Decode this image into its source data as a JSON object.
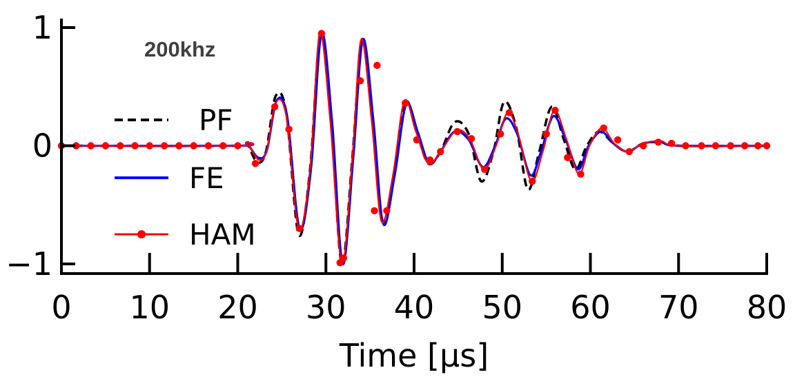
{
  "chart_data": {
    "type": "line",
    "annotation": "200khz",
    "xlabel": "Time [μs]",
    "ylabel": "",
    "xlim": [
      0,
      80
    ],
    "ylim": [
      -1.05,
      1.05
    ],
    "xticks": [
      0,
      10,
      20,
      30,
      40,
      50,
      60,
      70,
      80
    ],
    "xtick_labels": [
      "0",
      "10",
      "20",
      "30",
      "40",
      "50",
      "60",
      "70",
      "80"
    ],
    "yticks": [
      -1,
      0,
      1
    ],
    "ytick_labels": [
      "−1",
      "0",
      "1"
    ],
    "grid": false,
    "legend_position": "left",
    "series": [
      {
        "name": "PF",
        "color": "#000000",
        "style": "dashed",
        "x": [
          0,
          20,
          21,
          22.2,
          23.2,
          24.3,
          25.5,
          26.9,
          28.2,
          29.4,
          30.6,
          31.8,
          33.0,
          34.1,
          35.3,
          36.4,
          37.7,
          39.0,
          40.3,
          41.6,
          43.0,
          44.6,
          46.2,
          47.6,
          49.0,
          50.2,
          51.6,
          52.9,
          54.2,
          55.6,
          57.0,
          58.3,
          59.6,
          61.0,
          62.6,
          64.2,
          66.0,
          68.0,
          70.0,
          80
        ],
        "y": [
          0,
          0,
          0.02,
          -0.14,
          -0.05,
          0.42,
          0.28,
          -0.75,
          -0.2,
          0.97,
          0.2,
          -1.0,
          -0.1,
          0.9,
          0.2,
          -0.64,
          -0.25,
          0.37,
          0.12,
          -0.15,
          -0.05,
          0.2,
          0.1,
          -0.3,
          -0.05,
          0.37,
          0.15,
          -0.37,
          -0.05,
          0.33,
          0.05,
          -0.2,
          0.0,
          0.12,
          0.02,
          -0.05,
          0.02,
          0.03,
          0.0,
          0
        ]
      },
      {
        "name": "FE",
        "color": "#0000ff",
        "style": "solid",
        "x": [
          0,
          20,
          21,
          22.3,
          23.3,
          24.4,
          25.6,
          27.0,
          28.3,
          29.5,
          30.7,
          31.9,
          33.1,
          34.2,
          35.4,
          36.5,
          37.8,
          39.1,
          40.4,
          41.7,
          43.0,
          44.6,
          46.2,
          47.8,
          49.2,
          50.4,
          51.7,
          53.2,
          54.4,
          55.8,
          57.2,
          58.6,
          59.8,
          61.2,
          62.6,
          64.2,
          66.0,
          68.0,
          70.0,
          80
        ],
        "y": [
          0,
          0,
          0.02,
          -0.1,
          -0.04,
          0.38,
          0.25,
          -0.7,
          -0.2,
          0.95,
          0.2,
          -1.0,
          -0.1,
          0.9,
          0.2,
          -0.66,
          -0.25,
          0.35,
          0.12,
          -0.15,
          -0.05,
          0.12,
          0.05,
          -0.18,
          0.0,
          0.23,
          0.1,
          -0.25,
          -0.05,
          0.25,
          0.05,
          -0.2,
          0.0,
          0.12,
          0.02,
          -0.05,
          0.02,
          0.03,
          0.0,
          0
        ]
      },
      {
        "name": "HAM",
        "color": "#ff0000",
        "style": "solid-markers",
        "x": [
          0,
          20,
          21,
          22.4,
          23.3,
          24.3,
          25.5,
          26.9,
          28.2,
          29.3,
          30.5,
          31.8,
          33.0,
          34.0,
          35.2,
          36.3,
          37.6,
          38.9,
          40.2,
          41.6,
          43.0,
          44.8,
          46.3,
          47.9,
          49.3,
          50.6,
          51.8,
          53.3,
          54.6,
          55.9,
          57.3,
          58.7,
          59.9,
          61.3,
          62.7,
          64.2,
          66.0,
          68.0,
          70.0,
          80
        ],
        "y": [
          0,
          0,
          0.02,
          -0.12,
          -0.04,
          0.36,
          0.25,
          -0.7,
          -0.2,
          0.95,
          0.2,
          -1.0,
          -0.1,
          0.9,
          0.2,
          -0.64,
          -0.25,
          0.38,
          0.12,
          -0.15,
          -0.05,
          0.13,
          0.06,
          -0.2,
          0.0,
          0.28,
          0.1,
          -0.3,
          -0.05,
          0.3,
          0.05,
          -0.24,
          0.0,
          0.15,
          0.02,
          -0.05,
          0.02,
          0.04,
          0.0,
          0
        ],
        "marker_x": [
          0,
          1.67,
          3.33,
          5.0,
          6.67,
          8.33,
          10.0,
          11.67,
          13.33,
          15.0,
          16.67,
          18.33,
          20.0,
          22.0,
          24.2,
          25.8,
          27.0,
          29.5,
          31.6,
          32.0,
          33.9,
          35.5,
          35.8,
          36.9,
          39.0,
          40.3,
          41.8,
          43.0,
          44.9,
          46.5,
          48.0,
          49.8,
          50.8,
          53.4,
          55.0,
          56.0,
          57.4,
          58.9,
          61.5,
          63.1,
          64.4,
          66.0,
          67.7,
          69.2,
          70.8,
          72.6,
          74.2,
          75.9,
          77.5,
          79.0,
          80.0
        ],
        "marker_y": [
          0,
          0,
          0,
          0,
          0,
          0,
          0,
          0,
          0,
          0,
          0,
          0,
          0,
          -0.15,
          0.33,
          0.14,
          -0.7,
          0.95,
          -0.99,
          -0.95,
          0.55,
          -0.55,
          0.68,
          -0.55,
          0.36,
          0.05,
          -0.12,
          -0.05,
          0.12,
          0.06,
          -0.2,
          0.1,
          0.28,
          -0.3,
          0.1,
          0.3,
          -0.1,
          -0.24,
          0.15,
          0.05,
          -0.05,
          0.0,
          0.03,
          0.02,
          0.0,
          0.0,
          0.0,
          0.0,
          0.0,
          0.0,
          0.0
        ]
      }
    ]
  }
}
